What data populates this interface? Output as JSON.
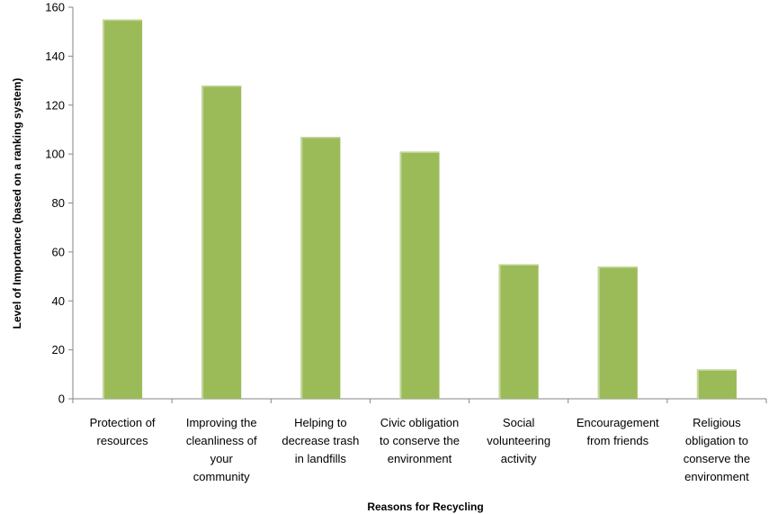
{
  "chart_data": {
    "type": "bar",
    "title": "",
    "xlabel": "Reasons for Recycling",
    "ylabel": "Level of Importance (based on a ranking system)",
    "ylim": [
      0,
      160
    ],
    "ytick_step": 20,
    "yticks": [
      "0",
      "20",
      "40",
      "60",
      "80",
      "100",
      "120",
      "140",
      "160"
    ],
    "grid": false,
    "legend": "none",
    "bar_color": "#9BBB59",
    "bar_highlight_color": "#C3D69B",
    "categories": [
      [
        "Protection of",
        "resources"
      ],
      [
        "Improving the",
        "cleanliness of",
        "your",
        "community"
      ],
      [
        "Helping to",
        "decrease trash",
        "in landfills"
      ],
      [
        "Civic obligation",
        "to conserve the",
        "environment"
      ],
      [
        "Social",
        "volunteering",
        "activity"
      ],
      [
        "Encouragement",
        "from friends"
      ],
      [
        "Religious",
        "obligation to",
        "conserve the",
        "environment"
      ]
    ],
    "values": [
      155,
      128,
      107,
      101,
      55,
      54,
      12
    ]
  }
}
